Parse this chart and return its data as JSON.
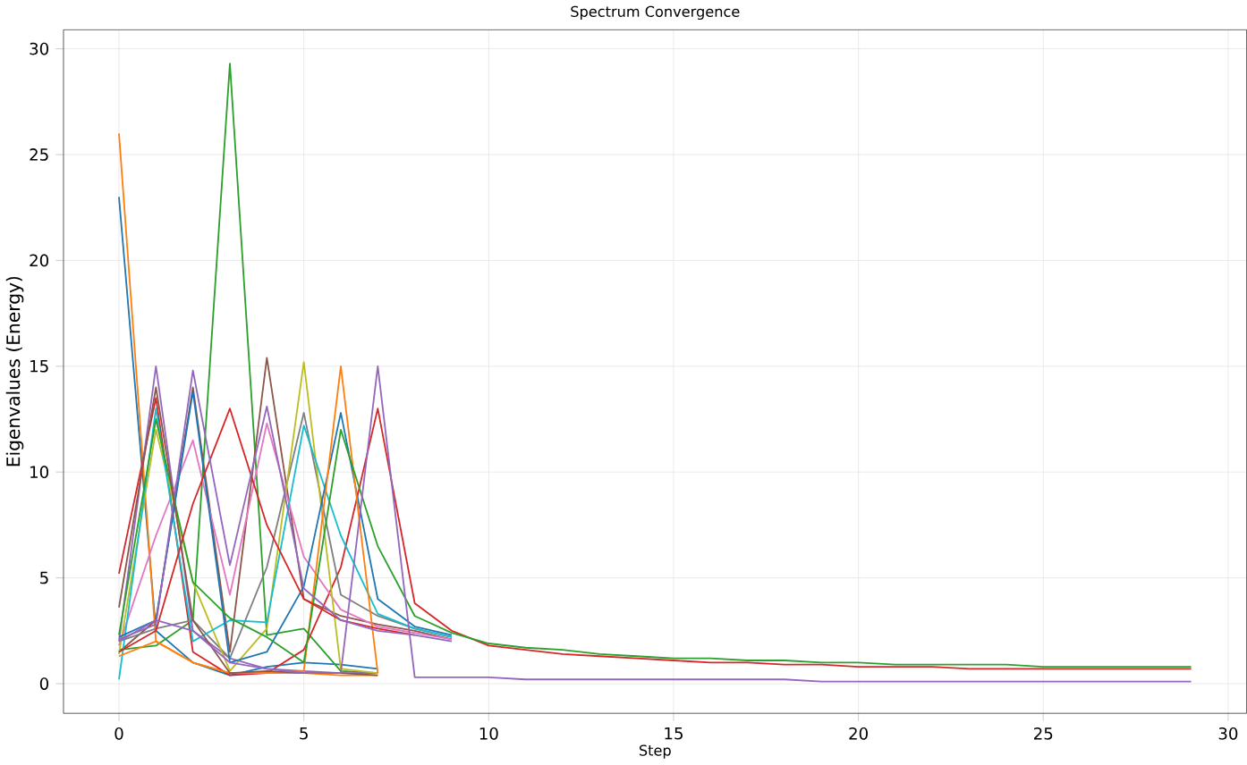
{
  "chart_data": {
    "type": "line",
    "title": "Spectrum Convergence",
    "xlabel": "Step",
    "ylabel": "Eigenvalues (Energy)",
    "x": [
      0,
      1,
      2,
      3,
      4,
      5,
      6,
      7,
      8,
      9,
      10,
      11,
      12,
      13,
      14,
      15,
      16,
      17,
      18,
      19,
      20,
      21,
      22,
      23,
      24,
      25,
      26,
      27,
      28,
      29
    ],
    "xlim": [
      -1.5,
      30.5
    ],
    "ylim": [
      -1.4,
      30.9
    ],
    "xticks": [
      0,
      5,
      10,
      15,
      20,
      25,
      30
    ],
    "yticks": [
      0,
      5,
      10,
      15,
      20,
      25,
      30
    ],
    "grid": true,
    "series": [
      {
        "color": "#1f77b4",
        "values": [
          23,
          2.5,
          1.0,
          0.4,
          0.8,
          1.0,
          0.9,
          0.7,
          null,
          null,
          null,
          null,
          null,
          null,
          null,
          null,
          null,
          null,
          null,
          null,
          null,
          null,
          null,
          null,
          null,
          null,
          null,
          null,
          null,
          null
        ]
      },
      {
        "color": "#ff7f0e",
        "values": [
          26,
          2.0,
          1.0,
          0.5,
          0.5,
          0.5,
          0.4,
          0.4,
          null,
          null,
          null,
          null,
          null,
          null,
          null,
          null,
          null,
          null,
          null,
          null,
          null,
          null,
          null,
          null,
          null,
          null,
          null,
          null,
          null,
          null
        ]
      },
      {
        "color": "#2ca02c",
        "values": [
          1.6,
          1.8,
          3.0,
          29.3,
          2.3,
          2.6,
          0.6,
          0.5,
          null,
          null,
          null,
          null,
          null,
          null,
          null,
          null,
          null,
          null,
          null,
          null,
          null,
          null,
          null,
          null,
          null,
          null,
          null,
          null,
          null,
          null
        ]
      },
      {
        "color": "#d62728",
        "values": [
          5.2,
          13.5,
          1.5,
          0.4,
          0.5,
          1.6,
          5.5,
          13.0,
          3.8,
          2.5,
          1.8,
          1.6,
          1.4,
          1.3,
          1.2,
          1.1,
          1.0,
          1.0,
          0.9,
          0.9,
          0.8,
          0.8,
          0.8,
          0.7,
          0.7,
          0.7,
          0.7,
          0.7,
          0.7,
          0.7
        ]
      },
      {
        "color": "#9467bd",
        "values": [
          2.0,
          15.0,
          2.5,
          1.2,
          0.7,
          0.6,
          0.5,
          0.5,
          null,
          null,
          null,
          null,
          null,
          null,
          null,
          null,
          null,
          null,
          null,
          null,
          null,
          null,
          null,
          null,
          null,
          null,
          null,
          null,
          null,
          null
        ]
      },
      {
        "color": "#8c564b",
        "values": [
          1.5,
          3.0,
          14.0,
          1.5,
          15.4,
          4.0,
          3.2,
          2.8,
          2.5,
          2.1,
          null,
          null,
          null,
          null,
          null,
          null,
          null,
          null,
          null,
          null,
          null,
          null,
          null,
          null,
          null,
          null,
          null,
          null,
          null,
          null
        ]
      },
      {
        "color": "#e377c2",
        "values": [
          1.8,
          7.0,
          11.5,
          4.2,
          12.3,
          6.0,
          3.5,
          2.7,
          2.4,
          2.1,
          null,
          null,
          null,
          null,
          null,
          null,
          null,
          null,
          null,
          null,
          null,
          null,
          null,
          null,
          null,
          null,
          null,
          null,
          null,
          null
        ]
      },
      {
        "color": "#7f7f7f",
        "values": [
          2.0,
          2.6,
          3.0,
          1.2,
          5.5,
          12.8,
          4.2,
          3.2,
          2.6,
          2.2,
          null,
          null,
          null,
          null,
          null,
          null,
          null,
          null,
          null,
          null,
          null,
          null,
          null,
          null,
          null,
          null,
          null,
          null,
          null,
          null
        ]
      },
      {
        "color": "#bcbd22",
        "values": [
          1.4,
          12.0,
          4.8,
          0.6,
          2.6,
          15.2,
          0.7,
          0.5,
          null,
          null,
          null,
          null,
          null,
          null,
          null,
          null,
          null,
          null,
          null,
          null,
          null,
          null,
          null,
          null,
          null,
          null,
          null,
          null,
          null,
          null
        ]
      },
      {
        "color": "#17becf",
        "values": [
          0.2,
          13.0,
          2.0,
          3.0,
          2.9,
          12.2,
          7.0,
          3.3,
          2.6,
          2.2,
          null,
          null,
          null,
          null,
          null,
          null,
          null,
          null,
          null,
          null,
          null,
          null,
          null,
          null,
          null,
          null,
          null,
          null,
          null,
          null
        ]
      },
      {
        "color": "#1f77b4",
        "values": [
          2.2,
          3.0,
          13.8,
          1.0,
          1.5,
          4.6,
          12.8,
          4.0,
          2.7,
          2.3,
          null,
          null,
          null,
          null,
          null,
          null,
          null,
          null,
          null,
          null,
          null,
          null,
          null,
          null,
          null,
          null,
          null,
          null,
          null,
          null
        ]
      },
      {
        "color": "#ff7f0e",
        "values": [
          1.3,
          2.0,
          1.0,
          0.5,
          0.5,
          0.6,
          15.0,
          0.5,
          null,
          null,
          null,
          null,
          null,
          null,
          null,
          null,
          null,
          null,
          null,
          null,
          null,
          null,
          null,
          null,
          null,
          null,
          null,
          null,
          null,
          null
        ]
      },
      {
        "color": "#2ca02c",
        "values": [
          2.3,
          12.5,
          4.8,
          3.1,
          2.2,
          1.0,
          12.0,
          6.5,
          3.2,
          2.4,
          1.9,
          1.7,
          1.6,
          1.4,
          1.3,
          1.2,
          1.2,
          1.1,
          1.1,
          1.0,
          1.0,
          0.9,
          0.9,
          0.9,
          0.9,
          0.8,
          0.8,
          0.8,
          0.8,
          0.8
        ]
      },
      {
        "color": "#d62728",
        "values": [
          1.5,
          2.5,
          8.5,
          13.0,
          7.5,
          4.0,
          3.0,
          2.6,
          2.3,
          null,
          null,
          null,
          null,
          null,
          null,
          null,
          null,
          null,
          null,
          null,
          null,
          null,
          null,
          null,
          null,
          null,
          null,
          null,
          null,
          null
        ]
      },
      {
        "color": "#9467bd",
        "values": [
          2.1,
          2.8,
          14.8,
          5.6,
          13.1,
          4.5,
          3.0,
          2.5,
          2.3,
          2.0,
          null,
          null,
          null,
          null,
          null,
          null,
          null,
          null,
          null,
          null,
          null,
          null,
          null,
          null,
          null,
          null,
          null,
          null,
          null,
          null
        ]
      },
      {
        "color": "#8c564b",
        "values": [
          3.6,
          14.0,
          3.0,
          0.5,
          0.6,
          0.5,
          0.5,
          0.4,
          null,
          null,
          null,
          null,
          null,
          null,
          null,
          null,
          null,
          null,
          null,
          null,
          null,
          null,
          null,
          null,
          null,
          null,
          null,
          null,
          null,
          null
        ]
      },
      {
        "color": "#9467bd",
        "values": [
          2.0,
          3.0,
          2.5,
          1.0,
          0.7,
          0.5,
          0.5,
          15.0,
          0.3,
          0.3,
          0.3,
          0.2,
          0.2,
          0.2,
          0.2,
          0.2,
          0.2,
          0.2,
          0.2,
          0.1,
          0.1,
          0.1,
          0.1,
          0.1,
          0.1,
          0.1,
          0.1,
          0.1,
          0.1,
          0.1
        ]
      }
    ]
  }
}
